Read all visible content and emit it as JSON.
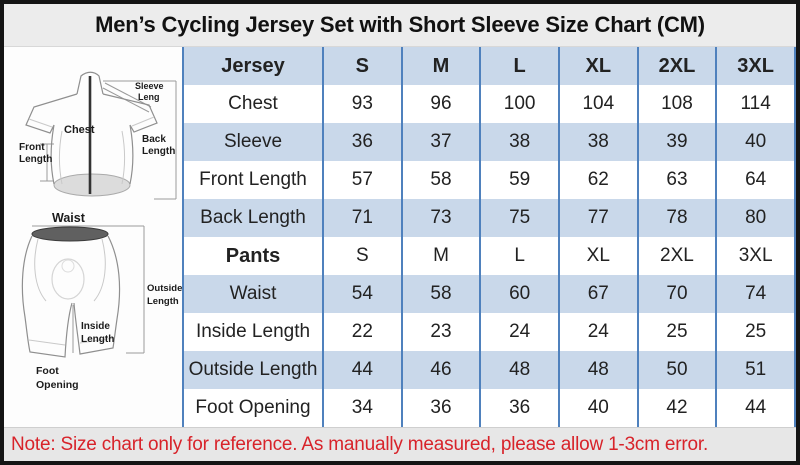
{
  "note": "Note: Size chart only for reference. As manually measured, please allow 1-3cm error.",
  "colors": {
    "row_blue": "#c9d8ea",
    "table_border_blue": "#4f81bd",
    "note_red": "#d8232a",
    "title_bg": "#ececec",
    "note_bg": "#e7e7e7",
    "frame_black": "#141414"
  },
  "chart_data": {
    "type": "table",
    "title": "Men’s Cycling Jersey Set with Short Sleeve Size Chart (CM)",
    "unit": "CM",
    "columns": [
      "S",
      "M",
      "L",
      "XL",
      "2XL",
      "3XL"
    ],
    "rows": [
      {
        "label": "Jersey",
        "style": "header",
        "values": [
          "S",
          "M",
          "L",
          "XL",
          "2XL",
          "3XL"
        ]
      },
      {
        "label": "Chest",
        "style": "data",
        "values": [
          93,
          96,
          100,
          104,
          108,
          114
        ]
      },
      {
        "label": "Sleeve",
        "style": "data",
        "values": [
          36,
          37,
          38,
          38,
          39,
          40
        ]
      },
      {
        "label": "Front Length",
        "style": "data",
        "values": [
          57,
          58,
          59,
          62,
          63,
          64
        ]
      },
      {
        "label": "Back Length",
        "style": "data",
        "values": [
          71,
          73,
          75,
          77,
          78,
          80
        ]
      },
      {
        "label": "Pants",
        "style": "subheader",
        "values": [
          "S",
          "M",
          "L",
          "XL",
          "2XL",
          "3XL"
        ]
      },
      {
        "label": "Waist",
        "style": "data",
        "values": [
          54,
          58,
          60,
          67,
          70,
          74
        ]
      },
      {
        "label": "Inside Length",
        "style": "data",
        "values": [
          22,
          23,
          24,
          24,
          25,
          25
        ]
      },
      {
        "label": "Outside Length",
        "style": "data",
        "values": [
          44,
          46,
          48,
          48,
          50,
          51
        ]
      },
      {
        "label": "Foot Opening",
        "style": "data",
        "values": [
          34,
          36,
          36,
          40,
          42,
          44
        ]
      }
    ]
  },
  "diagrams": {
    "jersey": {
      "labels": {
        "sleeve_line1": "Sleeve",
        "sleeve_line2": "Leng",
        "chest": "Chest",
        "front_line1": "Front",
        "front_line2": "Length",
        "back_line1": "Back",
        "back_line2": "Length"
      }
    },
    "shorts": {
      "labels": {
        "waist": "Waist",
        "outside_line1": "Outside",
        "outside_line2": "Length",
        "inside_line1": "Inside",
        "inside_line2": "Length",
        "foot_line1": "Foot",
        "foot_line2": "Opening"
      }
    }
  }
}
